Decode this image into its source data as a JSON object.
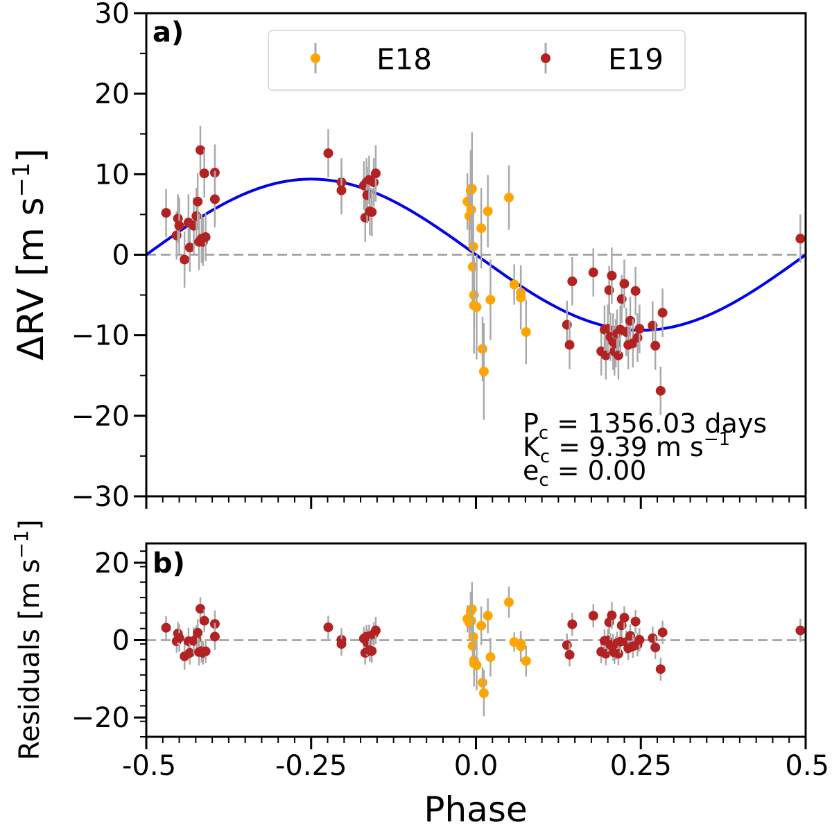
{
  "colors": {
    "E18": "#ffa500",
    "E19": "#b22222",
    "model": "#0000ee",
    "errorbar": "#aaaaaa",
    "zero": "#999999"
  },
  "chart_data": [
    {
      "type": "scatter",
      "panel_label": "a)",
      "xlabel": "",
      "ylabel": "ΔRV [m s",
      "ylabel_sup": "−1",
      "ylabel_close": "]",
      "xlim": [
        -0.5,
        0.5
      ],
      "ylim": [
        -30,
        30
      ],
      "yticks": [
        -30,
        -20,
        -10,
        0,
        10,
        20,
        30
      ],
      "ytick_labels": [
        "−30",
        "−20",
        "−10",
        "0",
        "10",
        "20",
        "30"
      ],
      "legend": {
        "position": "top-center",
        "entries": [
          "E18",
          "E19"
        ]
      },
      "annotations": {
        "P_main": "P",
        "P_sub": "c",
        "P_value": " = 1356.03 days",
        "K_main": "K",
        "K_sub": "c",
        "K_value": " = 9.39 m s",
        "K_sup": "−1",
        "e_main": "e",
        "e_sub": "c",
        "e_value": " = 0.00"
      },
      "model": {
        "type": "sine",
        "amplitude": 9.39,
        "period_phase": 1.0,
        "zero_at_phase": 0.0
      },
      "series": [
        {
          "name": "E18",
          "points": [
            [
              -0.013,
              6.6,
              3.5
            ],
            [
              -0.01,
              4.8,
              4.0
            ],
            [
              -0.008,
              8.0,
              5.0
            ],
            [
              -0.006,
              8.2,
              7.0
            ],
            [
              -0.007,
              5.6,
              4.5
            ],
            [
              -0.004,
              1.0,
              5.0
            ],
            [
              -0.005,
              -1.5,
              5.0
            ],
            [
              -0.003,
              -5.0,
              4.0
            ],
            [
              -0.003,
              -6.3,
              6.0
            ],
            [
              0.001,
              -6.5,
              6.5
            ],
            [
              0.008,
              3.3,
              5.0
            ],
            [
              0.01,
              -11.7,
              4.0
            ],
            [
              0.012,
              -14.5,
              6.0
            ],
            [
              0.018,
              5.4,
              4.5
            ],
            [
              0.022,
              -5.6,
              5.0
            ],
            [
              0.05,
              7.1,
              4.0
            ],
            [
              0.058,
              -3.7,
              2.5
            ],
            [
              0.068,
              -4.7,
              3.0
            ],
            [
              0.068,
              -5.3,
              4.0
            ],
            [
              0.076,
              -9.6,
              4.0
            ]
          ]
        },
        {
          "name": "E19",
          "points": [
            [
              -0.47,
              5.2,
              3.0
            ],
            [
              -0.454,
              2.4,
              3.0
            ],
            [
              -0.452,
              4.5,
              3.0
            ],
            [
              -0.45,
              3.6,
              3.5
            ],
            [
              -0.442,
              -0.6,
              3.5
            ],
            [
              -0.436,
              4.0,
              3.5
            ],
            [
              -0.434,
              0.9,
              3.0
            ],
            [
              -0.428,
              3.6,
              3.5
            ],
            [
              -0.424,
              4.8,
              3.5
            ],
            [
              -0.422,
              6.6,
              3.5
            ],
            [
              -0.42,
              1.6,
              3.5
            ],
            [
              -0.418,
              13.0,
              3.0
            ],
            [
              -0.416,
              2.0,
              3.0
            ],
            [
              -0.414,
              1.6,
              3.0
            ],
            [
              -0.412,
              10.1,
              3.0
            ],
            [
              -0.41,
              2.2,
              3.0
            ],
            [
              -0.396,
              10.2,
              3.5
            ],
            [
              -0.396,
              6.9,
              3.5
            ],
            [
              -0.224,
              12.6,
              3.0
            ],
            [
              -0.204,
              9.0,
              3.0
            ],
            [
              -0.204,
              8.0,
              3.0
            ],
            [
              -0.17,
              8.6,
              3.0
            ],
            [
              -0.168,
              4.6,
              3.0
            ],
            [
              -0.166,
              9.0,
              3.0
            ],
            [
              -0.165,
              7.4,
              3.5
            ],
            [
              -0.162,
              9.3,
              3.0
            ],
            [
              -0.161,
              5.4,
              3.0
            ],
            [
              -0.158,
              5.3,
              3.0
            ],
            [
              -0.155,
              9.0,
              3.0
            ],
            [
              -0.152,
              10.1,
              3.5
            ],
            [
              0.138,
              -8.7,
              3.0
            ],
            [
              0.142,
              -11.2,
              3.0
            ],
            [
              0.146,
              -3.3,
              3.0
            ],
            [
              0.178,
              -2.2,
              3.0
            ],
            [
              0.19,
              -12.0,
              3.0
            ],
            [
              0.195,
              -9.3,
              3.0
            ],
            [
              0.197,
              -12.5,
              3.0
            ],
            [
              0.2,
              -9.2,
              3.0
            ],
            [
              0.202,
              -4.4,
              3.0
            ],
            [
              0.204,
              -10.2,
              3.0
            ],
            [
              0.206,
              -2.6,
              3.5
            ],
            [
              0.208,
              -10.8,
              3.5
            ],
            [
              0.21,
              -12.0,
              3.0
            ],
            [
              0.212,
              -11.0,
              3.0
            ],
            [
              0.214,
              -9.8,
              3.0
            ],
            [
              0.216,
              -12.5,
              3.0
            ],
            [
              0.219,
              -9.3,
              3.0
            ],
            [
              0.221,
              -5.5,
              3.0
            ],
            [
              0.225,
              -3.6,
              3.0
            ],
            [
              0.228,
              -9.6,
              3.0
            ],
            [
              0.231,
              -11.2,
              3.0
            ],
            [
              0.234,
              -8.2,
              3.0
            ],
            [
              0.238,
              -11.0,
              3.0
            ],
            [
              0.242,
              -4.5,
              3.0
            ],
            [
              0.245,
              -10.3,
              3.0
            ],
            [
              0.248,
              -9.2,
              3.0
            ],
            [
              0.268,
              -8.8,
              3.0
            ],
            [
              0.272,
              -11.3,
              3.0
            ],
            [
              0.28,
              -16.9,
              3.0
            ],
            [
              0.283,
              -7.2,
              3.0
            ],
            [
              0.492,
              2.0,
              3.0
            ]
          ]
        }
      ]
    },
    {
      "type": "scatter",
      "panel_label": "b)",
      "xlabel": "Phase",
      "ylabel": "Residuals [m s",
      "ylabel_sup": "−1",
      "ylabel_close": "]",
      "xlim": [
        -0.5,
        0.5
      ],
      "ylim": [
        -25,
        25
      ],
      "yticks": [
        -20,
        0,
        20
      ],
      "ytick_labels": [
        "−20",
        "0",
        "20"
      ],
      "xticks": [
        -0.5,
        -0.25,
        0.0,
        0.25,
        0.5
      ],
      "xtick_labels": [
        "-0.5",
        "-0.25",
        "0.0",
        "0.25",
        "0.5"
      ],
      "series": [
        {
          "name": "E18",
          "points": [
            [
              -0.013,
              5.5,
              3.5
            ],
            [
              -0.01,
              4.5,
              4.0
            ],
            [
              -0.008,
              7.5,
              5.0
            ],
            [
              -0.006,
              8.0,
              7.0
            ],
            [
              -0.007,
              5.0,
              4.5
            ],
            [
              -0.004,
              0.8,
              5.0
            ],
            [
              -0.005,
              -1.5,
              5.0
            ],
            [
              -0.003,
              -5.2,
              4.0
            ],
            [
              -0.003,
              -6.0,
              6.0
            ],
            [
              0.001,
              -6.5,
              6.5
            ],
            [
              0.008,
              3.7,
              5.0
            ],
            [
              0.01,
              -11.0,
              4.0
            ],
            [
              0.012,
              -13.7,
              6.0
            ],
            [
              0.018,
              6.3,
              4.5
            ],
            [
              0.022,
              -4.4,
              5.0
            ],
            [
              0.05,
              9.8,
              4.0
            ],
            [
              0.058,
              -0.5,
              2.5
            ],
            [
              0.068,
              -0.9,
              3.0
            ],
            [
              0.068,
              -1.6,
              4.0
            ],
            [
              0.076,
              -5.4,
              4.0
            ]
          ]
        },
        {
          "name": "E19",
          "points": [
            [
              -0.47,
              3.2,
              3.0
            ],
            [
              -0.454,
              -0.3,
              3.0
            ],
            [
              -0.452,
              1.7,
              3.0
            ],
            [
              -0.45,
              0.6,
              3.5
            ],
            [
              -0.442,
              -4.2,
              3.5
            ],
            [
              -0.436,
              -0.3,
              3.5
            ],
            [
              -0.434,
              -3.3,
              3.0
            ],
            [
              -0.428,
              -0.2,
              3.5
            ],
            [
              -0.424,
              0.3,
              3.5
            ],
            [
              -0.422,
              1.9,
              3.5
            ],
            [
              -0.42,
              -3.1,
              3.5
            ],
            [
              -0.418,
              8.1,
              3.0
            ],
            [
              -0.416,
              -2.8,
              3.0
            ],
            [
              -0.414,
              -3.3,
              3.0
            ],
            [
              -0.412,
              5.0,
              3.0
            ],
            [
              -0.41,
              -2.9,
              3.0
            ],
            [
              -0.396,
              4.2,
              3.5
            ],
            [
              -0.396,
              0.9,
              3.5
            ],
            [
              -0.224,
              3.3,
              3.0
            ],
            [
              -0.204,
              0.1,
              3.0
            ],
            [
              -0.204,
              -1.0,
              3.0
            ],
            [
              -0.17,
              0.4,
              3.0
            ],
            [
              -0.168,
              -3.3,
              3.0
            ],
            [
              -0.166,
              0.9,
              3.0
            ],
            [
              -0.165,
              -0.6,
              3.5
            ],
            [
              -0.162,
              1.0,
              3.0
            ],
            [
              -0.161,
              -2.6,
              3.0
            ],
            [
              -0.158,
              -2.8,
              3.0
            ],
            [
              -0.155,
              1.6,
              3.0
            ],
            [
              -0.152,
              2.5,
              3.5
            ],
            [
              0.138,
              -1.3,
              3.0
            ],
            [
              0.142,
              -3.8,
              3.0
            ],
            [
              0.146,
              4.1,
              3.0
            ],
            [
              0.178,
              6.3,
              3.0
            ],
            [
              0.19,
              -3.0,
              3.0
            ],
            [
              0.195,
              -0.2,
              3.0
            ],
            [
              0.197,
              -3.5,
              3.0
            ],
            [
              0.2,
              -0.1,
              3.0
            ],
            [
              0.202,
              4.6,
              3.0
            ],
            [
              0.204,
              -1.2,
              3.0
            ],
            [
              0.206,
              6.4,
              3.5
            ],
            [
              0.208,
              -1.8,
              3.5
            ],
            [
              0.21,
              -3.2,
              3.0
            ],
            [
              0.212,
              -2.1,
              3.0
            ],
            [
              0.214,
              -0.8,
              3.0
            ],
            [
              0.216,
              -3.5,
              3.0
            ],
            [
              0.219,
              -0.4,
              3.0
            ],
            [
              0.221,
              3.8,
              3.0
            ],
            [
              0.225,
              5.8,
              3.0
            ],
            [
              0.228,
              -0.5,
              3.0
            ],
            [
              0.231,
              -2.1,
              3.0
            ],
            [
              0.234,
              1.1,
              3.0
            ],
            [
              0.238,
              -1.6,
              3.0
            ],
            [
              0.242,
              4.8,
              3.0
            ],
            [
              0.245,
              -1.2,
              3.0
            ],
            [
              0.248,
              0.1,
              3.0
            ],
            [
              0.268,
              0.5,
              3.0
            ],
            [
              0.272,
              -1.9,
              3.0
            ],
            [
              0.28,
              -7.5,
              3.0
            ],
            [
              0.283,
              2.0,
              3.0
            ],
            [
              0.492,
              2.5,
              3.0
            ]
          ]
        }
      ]
    }
  ]
}
